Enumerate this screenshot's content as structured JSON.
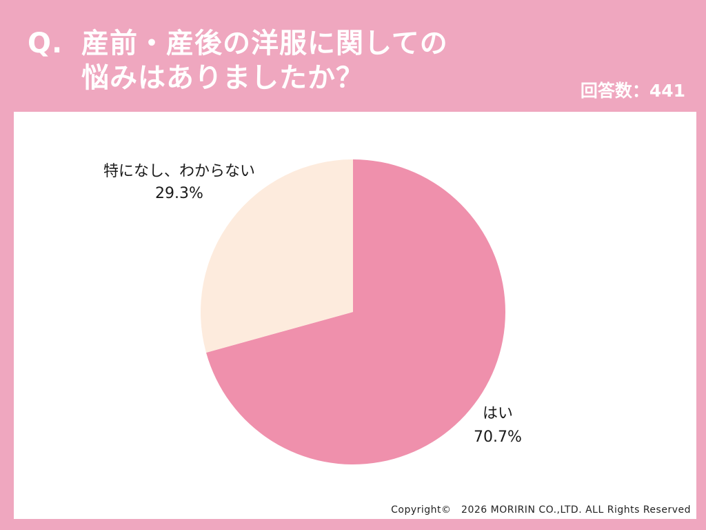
{
  "header": {
    "q_mark": "Q.",
    "title_line1": "産前・産後の洋服に関しての",
    "title_line2": "悩みはありましたか？",
    "respondents": "回答数：441"
  },
  "chart_data": {
    "type": "pie",
    "title": "産前・産後の洋服に関しての悩みはありましたか？",
    "slices": [
      {
        "label": "はい",
        "value": 70.7,
        "value_label": "70.7%",
        "color": "#ef90ac"
      },
      {
        "label": "特になし、わからない",
        "value": 29.3,
        "value_label": "29.3%",
        "color": "#fdebdd"
      }
    ],
    "start": "12 o'clock, clockwise"
  },
  "colors": {
    "background": "#efa7bf",
    "panel": "#ffffff",
    "title_text": "#ffffff"
  },
  "footer": {
    "copyright": "Copyright©　2026 MORIRIN CO.,LTD. ALL Rights Reserved"
  }
}
